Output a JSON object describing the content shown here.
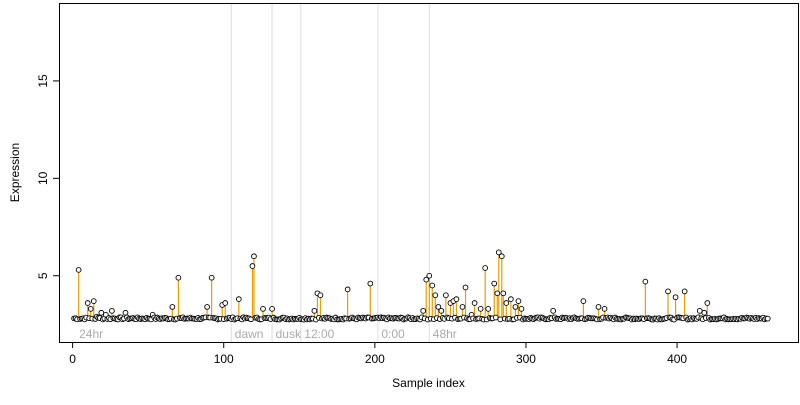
{
  "chart_data": {
    "type": "scatter",
    "title": "",
    "xlabel": "Sample index",
    "ylabel": "Expression",
    "xlim": [
      -9,
      480
    ],
    "ylim": [
      1.6,
      19.0
    ],
    "x_ticks": [
      0,
      100,
      200,
      300,
      400
    ],
    "y_ticks": [
      5,
      10,
      15
    ],
    "baseline": 2.8,
    "n_samples": 460,
    "grid": false,
    "legend": "none",
    "colors": {
      "point_fill": "#ffffff",
      "point_stroke": "#000000",
      "stem": "#e69f00",
      "divider": "#dddddd",
      "region_label": "#aaaaaa",
      "axis": "#000000"
    },
    "dividers": [
      105,
      132,
      151,
      202,
      236
    ],
    "region_labels": [
      {
        "text": "24hr",
        "x": 3
      },
      {
        "text": "dawn",
        "x": 106
      },
      {
        "text": "dusk",
        "x": 133
      },
      {
        "text": "12:00",
        "x": 152
      },
      {
        "text": "0:00",
        "x": 203
      },
      {
        "text": "48hr",
        "x": 237
      }
    ],
    "peaks": [
      {
        "x": 4,
        "y": 5.3
      },
      {
        "x": 10,
        "y": 3.6
      },
      {
        "x": 12,
        "y": 3.3
      },
      {
        "x": 14,
        "y": 3.7
      },
      {
        "x": 16,
        "y": 2.9
      },
      {
        "x": 19,
        "y": 3.1
      },
      {
        "x": 22,
        "y": 3.0
      },
      {
        "x": 26,
        "y": 3.2
      },
      {
        "x": 35,
        "y": 3.1
      },
      {
        "x": 53,
        "y": 3.0
      },
      {
        "x": 66,
        "y": 3.4
      },
      {
        "x": 70,
        "y": 4.9
      },
      {
        "x": 89,
        "y": 3.4
      },
      {
        "x": 92,
        "y": 4.9
      },
      {
        "x": 99,
        "y": 3.5
      },
      {
        "x": 101,
        "y": 3.6
      },
      {
        "x": 110,
        "y": 3.8
      },
      {
        "x": 119,
        "y": 5.5
      },
      {
        "x": 120,
        "y": 6.0
      },
      {
        "x": 126,
        "y": 3.3
      },
      {
        "x": 132,
        "y": 3.3
      },
      {
        "x": 160,
        "y": 3.2
      },
      {
        "x": 162,
        "y": 4.1
      },
      {
        "x": 164,
        "y": 4.0
      },
      {
        "x": 182,
        "y": 4.3
      },
      {
        "x": 197,
        "y": 4.6
      },
      {
        "x": 232,
        "y": 3.2
      },
      {
        "x": 234,
        "y": 4.8
      },
      {
        "x": 236,
        "y": 5.0
      },
      {
        "x": 238,
        "y": 4.5
      },
      {
        "x": 240,
        "y": 4.0
      },
      {
        "x": 242,
        "y": 3.4
      },
      {
        "x": 244,
        "y": 3.2
      },
      {
        "x": 247,
        "y": 4.0
      },
      {
        "x": 250,
        "y": 3.6
      },
      {
        "x": 252,
        "y": 3.7
      },
      {
        "x": 254,
        "y": 3.8
      },
      {
        "x": 258,
        "y": 3.4
      },
      {
        "x": 260,
        "y": 4.4
      },
      {
        "x": 264,
        "y": 3.0
      },
      {
        "x": 266,
        "y": 3.6
      },
      {
        "x": 270,
        "y": 3.3
      },
      {
        "x": 273,
        "y": 5.4
      },
      {
        "x": 275,
        "y": 3.3
      },
      {
        "x": 279,
        "y": 4.6
      },
      {
        "x": 281,
        "y": 4.1
      },
      {
        "x": 282,
        "y": 6.2
      },
      {
        "x": 284,
        "y": 6.0
      },
      {
        "x": 285,
        "y": 4.1
      },
      {
        "x": 287,
        "y": 3.6
      },
      {
        "x": 290,
        "y": 3.8
      },
      {
        "x": 293,
        "y": 3.4
      },
      {
        "x": 295,
        "y": 3.7
      },
      {
        "x": 297,
        "y": 3.3
      },
      {
        "x": 318,
        "y": 3.2
      },
      {
        "x": 338,
        "y": 3.7
      },
      {
        "x": 348,
        "y": 3.4
      },
      {
        "x": 352,
        "y": 3.3
      },
      {
        "x": 379,
        "y": 4.7
      },
      {
        "x": 394,
        "y": 4.2
      },
      {
        "x": 399,
        "y": 3.9
      },
      {
        "x": 405,
        "y": 4.2
      },
      {
        "x": 415,
        "y": 3.2
      },
      {
        "x": 418,
        "y": 3.1
      },
      {
        "x": 420,
        "y": 3.6
      }
    ]
  }
}
